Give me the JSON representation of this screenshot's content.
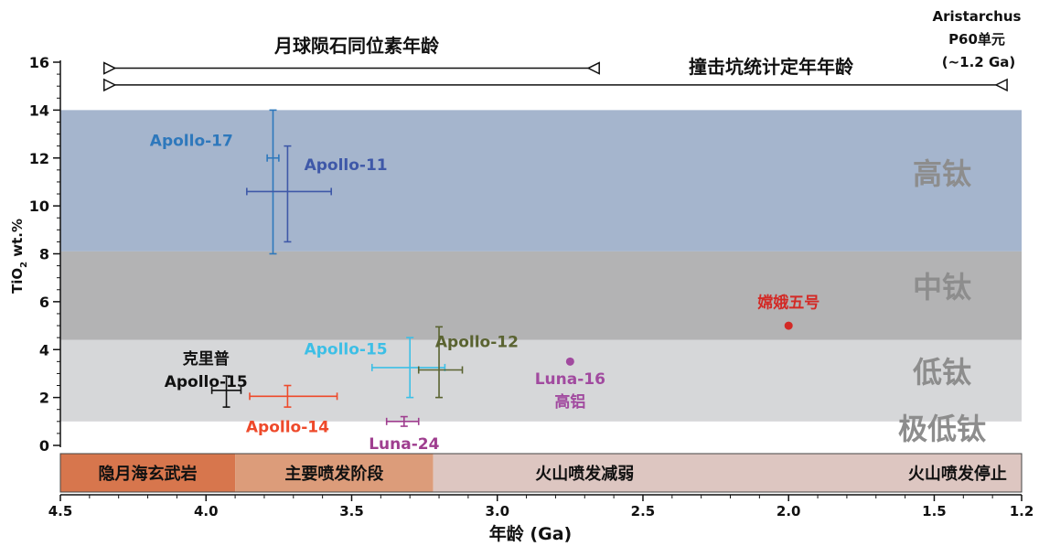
{
  "chart_data": {
    "type": "scatter",
    "title": "",
    "xlabel": "年龄 (Ga)",
    "ylabel_main": "TiO",
    "ylabel_sub": "2",
    "ylabel_rest": " wt.%",
    "xlim": [
      4.5,
      1.2
    ],
    "ylim": [
      0,
      16
    ],
    "x_reversed": true,
    "x_ticks": [
      "4.5",
      "4.0",
      "3.5",
      "3.0",
      "2.5",
      "2.0",
      "1.5",
      "1.2"
    ],
    "x_tick_values": [
      4.5,
      4.0,
      3.5,
      3.0,
      2.5,
      2.0,
      1.5,
      1.2
    ],
    "y_ticks": [
      "0",
      "2",
      "4",
      "6",
      "8",
      "10",
      "12",
      "14",
      "16"
    ],
    "y_tick_values": [
      0,
      2,
      4,
      6,
      8,
      10,
      12,
      14,
      16
    ],
    "bands": [
      {
        "label": "高钛",
        "y0": 8.1,
        "y1": 14.0,
        "color": "#a5b5cd"
      },
      {
        "label": "中钛",
        "y0": 4.4,
        "y1": 8.1,
        "color": "#b3b3b4"
      },
      {
        "label": "低钛",
        "y0": 1.0,
        "y1": 4.4,
        "color": "#d6d7d9"
      },
      {
        "label": "极低钛",
        "y0": -0.5,
        "y1": 1.0,
        "color": "#ffffff"
      }
    ],
    "ranges": [
      {
        "label": "月球陨石同位素年龄",
        "x0": 4.35,
        "x1": 2.65,
        "y": 15.75
      },
      {
        "label": "撞击坑统计定年年龄",
        "x0": 4.35,
        "x1": 1.25,
        "y": 15.05
      }
    ],
    "aristarchus": {
      "line1": "Aristarchus",
      "line2": "P60单元",
      "line3": "(~1.2 Ga)"
    },
    "eras": [
      {
        "label": "隐月海玄武岩",
        "x0": 4.5,
        "x1": 3.9,
        "color": "#d7764d"
      },
      {
        "label": "主要喷发阶段",
        "x0": 3.9,
        "x1": 3.22,
        "color": "#dc9c7a"
      },
      {
        "label": "火山喷发减弱",
        "x0": 3.22,
        "x1": 1.2,
        "color": "#ddc6c1",
        "label_x": 2.7
      },
      {
        "label": "火山喷发停止",
        "x0": 1.2,
        "x1": 1.2,
        "color": "#ddc6c1",
        "label_x": 1.42
      }
    ],
    "series": [
      {
        "name": "Apollo-17",
        "x": 3.77,
        "y": 12.0,
        "xerr": [
          3.79,
          3.75
        ],
        "yerr": [
          8.0,
          14.0
        ],
        "color": "#2e78bc",
        "label_x": 4.05,
        "label_y": 12.5
      },
      {
        "name": "Apollo-11",
        "x": 3.72,
        "y": 10.6,
        "xerr": [
          3.86,
          3.57
        ],
        "yerr": [
          8.5,
          12.5
        ],
        "color": "#3e58a8",
        "label_x": 3.52,
        "label_y": 11.5
      },
      {
        "name": "Apollo-15",
        "x": 3.3,
        "y": 3.25,
        "xerr": [
          3.43,
          3.18
        ],
        "yerr": [
          2.0,
          4.5
        ],
        "color": "#3dbfe6",
        "label_x": 3.52,
        "label_y": 3.8,
        "align": "middle"
      },
      {
        "name": "Apollo-12",
        "x": 3.2,
        "y": 3.15,
        "xerr": [
          3.27,
          3.12
        ],
        "yerr": [
          2.0,
          4.95
        ],
        "color": "#5a6331",
        "label_x": 3.07,
        "label_y": 4.1
      },
      {
        "name": "克里普Apollo-15",
        "label_lines": [
          "克里普",
          "Apollo-15"
        ],
        "x": 3.93,
        "y": 2.3,
        "xerr": [
          3.98,
          3.88
        ],
        "yerr": [
          1.6,
          2.9
        ],
        "color": "#111111",
        "label_x": 4.0,
        "label_y": 3.4
      },
      {
        "name": "Apollo-14",
        "x": 3.72,
        "y": 2.05,
        "xerr": [
          3.85,
          3.55
        ],
        "yerr": [
          1.6,
          2.5
        ],
        "color": "#ee4a2b",
        "label_x": 3.72,
        "label_y": 0.55
      },
      {
        "name": "Luna-24",
        "x": 3.32,
        "y": 1.0,
        "xerr": [
          3.38,
          3.27
        ],
        "yerr": [
          0.8,
          1.2
        ],
        "color": "#9f3e8f",
        "label_x": 3.32,
        "label_y": -0.15
      },
      {
        "name": "Luna-16高铝",
        "label_lines": [
          "Luna-16",
          "高铝"
        ],
        "x": 2.75,
        "y": 3.5,
        "color": "#a14a9f",
        "point": true,
        "label_x": 2.75,
        "label_y": 2.55
      },
      {
        "name": "嫦娥五号",
        "x": 2.0,
        "y": 5.0,
        "color": "#d32a26",
        "point": true,
        "label_x": 2.0,
        "label_y": 5.75
      }
    ]
  }
}
